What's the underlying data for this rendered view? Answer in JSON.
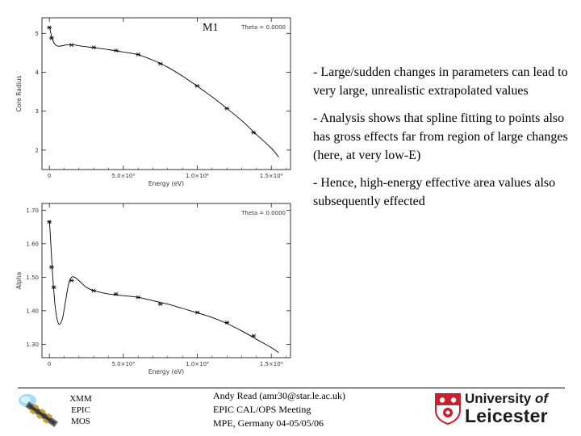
{
  "chart_data": [
    {
      "type": "line",
      "title": "",
      "panel_label": "M1",
      "annotation": "Theta = 0.0000",
      "xlabel": "Energy (eV)",
      "ylabel": "Core Radius",
      "xlim": [
        -500,
        16300
      ],
      "ylim": [
        1.5,
        5.4
      ],
      "x_ticks": [
        0,
        5000,
        10000,
        15000
      ],
      "x_tick_labels": [
        "0",
        "5.0×10³",
        "1.0×10⁴",
        "1.5×10⁴"
      ],
      "y_ticks": [
        2,
        3,
        4,
        5
      ],
      "y_tick_labels": [
        "2",
        "3",
        "4",
        "5"
      ],
      "points": {
        "x": [
          0,
          150,
          1500,
          3000,
          4500,
          6000,
          7500,
          10000,
          12000,
          13800
        ],
        "y": [
          5.15,
          4.88,
          4.7,
          4.64,
          4.56,
          4.46,
          4.22,
          3.65,
          3.07,
          2.45
        ]
      },
      "curve": {
        "x": [
          0,
          100,
          200,
          350,
          500,
          700,
          1000,
          1300,
          1700,
          2200,
          3000,
          4000,
          5000,
          6000,
          7000,
          8000,
          9000,
          10000,
          11000,
          12000,
          13000,
          14000,
          15000,
          15500
        ],
        "y": [
          5.18,
          5.0,
          4.85,
          4.73,
          4.68,
          4.67,
          4.69,
          4.71,
          4.7,
          4.67,
          4.63,
          4.58,
          4.52,
          4.45,
          4.31,
          4.13,
          3.9,
          3.64,
          3.37,
          3.07,
          2.76,
          2.4,
          2.05,
          1.82
        ]
      }
    },
    {
      "type": "line",
      "title": "",
      "annotation": "Theta = 0.0000",
      "xlabel": "Energy (eV)",
      "ylabel": "Alpha",
      "xlim": [
        -500,
        16300
      ],
      "ylim": [
        1.26,
        1.72
      ],
      "x_ticks": [
        0,
        5000,
        10000,
        15000
      ],
      "x_tick_labels": [
        "0",
        "5.0×10³",
        "1.0×10⁴",
        "1.5×10⁴"
      ],
      "y_ticks": [
        1.3,
        1.4,
        1.5,
        1.6,
        1.7
      ],
      "y_tick_labels": [
        "1.30",
        "1.40",
        "1.50",
        "1.60",
        "1.70"
      ],
      "points": {
        "x": [
          0,
          150,
          300,
          1500,
          3000,
          4500,
          6000,
          7500,
          10000,
          12000,
          13800
        ],
        "y": [
          1.665,
          1.53,
          1.47,
          1.49,
          1.46,
          1.45,
          1.44,
          1.42,
          1.395,
          1.365,
          1.325
        ]
      },
      "curve": {
        "x": [
          0,
          100,
          200,
          300,
          400,
          550,
          700,
          900,
          1100,
          1300,
          1500,
          1700,
          2000,
          2500,
          3000,
          4000,
          5000,
          6000,
          7000,
          8000,
          9000,
          10000,
          11000,
          12000,
          13000,
          14000,
          15000,
          15500
        ],
        "y": [
          1.67,
          1.6,
          1.52,
          1.46,
          1.41,
          1.37,
          1.36,
          1.38,
          1.43,
          1.48,
          1.5,
          1.5,
          1.49,
          1.47,
          1.46,
          1.45,
          1.445,
          1.44,
          1.43,
          1.42,
          1.407,
          1.394,
          1.38,
          1.362,
          1.34,
          1.315,
          1.29,
          1.275
        ]
      }
    }
  ],
  "bullets": [
    "- Large/sudden changes in parameters can lead to very large, unrealistic extrapolated values",
    "- Analysis shows that spline fitting to points also has gross effects far from region of large changes (here, at very low-E)",
    "- Hence, high-energy effective area values also subsequently effected"
  ],
  "footer": {
    "author": "Andy Read (amr30@star.le.ac.uk)",
    "meeting": "EPIC CAL/OPS Meeting",
    "place": "MPE, Germany 04-05/05/06"
  },
  "xmm_label": [
    "XMM",
    "EPIC",
    "MOS"
  ],
  "university": {
    "line1": "University",
    "of": "of",
    "line2": "Leicester"
  },
  "colors": {
    "text": "#000000",
    "plot_line": "#000000",
    "crest_red": "#c8202e"
  }
}
